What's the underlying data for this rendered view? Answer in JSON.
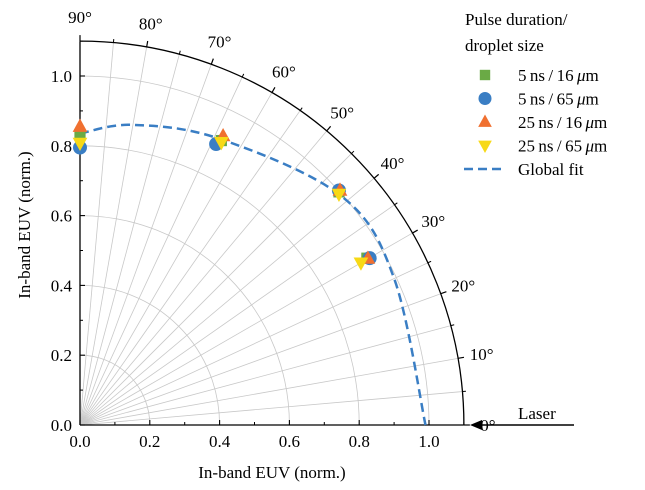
{
  "chart_data": {
    "type": "scatter",
    "coordinate_system": "polar-quarter",
    "title": "",
    "xlabel": "In-band EUV (norm.)",
    "ylabel": "In-band EUV (norm.)",
    "xlim": [
      0.0,
      1.1
    ],
    "ylim": [
      0.0,
      1.1
    ],
    "x_ticks": [
      "0.0",
      "0.2",
      "0.4",
      "0.6",
      "0.8",
      "1.0"
    ],
    "y_ticks": [
      "0.0",
      "0.2",
      "0.4",
      "0.6",
      "0.8",
      "1.0"
    ],
    "x_tick_values": [
      0.0,
      0.2,
      0.4,
      0.6,
      0.8,
      1.0
    ],
    "y_tick_values": [
      0.0,
      0.2,
      0.4,
      0.6,
      0.8,
      1.0
    ],
    "radial_grid": [
      0.2,
      0.4,
      0.6,
      0.8,
      1.0
    ],
    "angle_ticks": [
      0,
      10,
      20,
      30,
      40,
      50,
      60,
      70,
      80,
      90
    ],
    "angle_labels": [
      "0°",
      "10°",
      "20°",
      "30°",
      "40°",
      "50°",
      "60°",
      "70°",
      "80°",
      "90°"
    ],
    "minor_angle_ticks": [
      5,
      15,
      25,
      35,
      45,
      55,
      65,
      75,
      85
    ],
    "grid": true,
    "legend_title": "Pulse duration/\ndroplet size",
    "legend_position": "top-right",
    "annotation": "Laser",
    "series": [
      {
        "name": "5 ns / 16 μm",
        "marker": "square",
        "color": "#6aaa45",
        "points": [
          {
            "x": 0.0,
            "y": 0.83
          },
          {
            "x": 0.405,
            "y": 0.815
          },
          {
            "x": 0.742,
            "y": 0.668
          },
          {
            "x": 0.822,
            "y": 0.478
          }
        ]
      },
      {
        "name": "5 ns / 65 μm",
        "marker": "circle",
        "color": "#3a7ec4",
        "points": [
          {
            "x": 0.0,
            "y": 0.795
          },
          {
            "x": 0.39,
            "y": 0.805
          },
          {
            "x": 0.742,
            "y": 0.672
          },
          {
            "x": 0.83,
            "y": 0.478
          }
        ]
      },
      {
        "name": "25 ns / 16 μm",
        "marker": "triangle-up",
        "color": "#f07030",
        "points": [
          {
            "x": 0.0,
            "y": 0.855
          },
          {
            "x": 0.41,
            "y": 0.828
          },
          {
            "x": 0.745,
            "y": 0.672
          },
          {
            "x": 0.825,
            "y": 0.477
          }
        ]
      },
      {
        "name": "25 ns / 65 μm",
        "marker": "triangle-down",
        "color": "#f7d916",
        "points": [
          {
            "x": 0.0,
            "y": 0.808
          },
          {
            "x": 0.405,
            "y": 0.81
          },
          {
            "x": 0.742,
            "y": 0.662
          },
          {
            "x": 0.805,
            "y": 0.465
          }
        ]
      },
      {
        "name": "Global fit",
        "type": "line",
        "style": "dashed",
        "color": "#3a7ec4",
        "points": [
          {
            "x": 0.0,
            "y": 0.835
          },
          {
            "x": 0.15,
            "y": 0.86
          },
          {
            "x": 0.4,
            "y": 0.82
          },
          {
            "x": 0.75,
            "y": 0.655
          },
          {
            "x": 0.9,
            "y": 0.42
          },
          {
            "x": 0.99,
            "y": 0.0
          }
        ]
      }
    ],
    "legend_labels": [
      {
        "num": "5",
        "unit1": "ns",
        "sep": "/",
        "size": "16",
        "unit2": "μm"
      },
      {
        "num": "5",
        "unit1": "ns",
        "sep": "/",
        "size": "65",
        "unit2": "μm"
      },
      {
        "num": "25",
        "unit1": "ns",
        "sep": "/",
        "size": "16",
        "unit2": "μm"
      },
      {
        "num": "25",
        "unit1": "ns",
        "sep": "/",
        "size": "65",
        "unit2": "μm"
      },
      {
        "text": "Global fit"
      }
    ]
  }
}
